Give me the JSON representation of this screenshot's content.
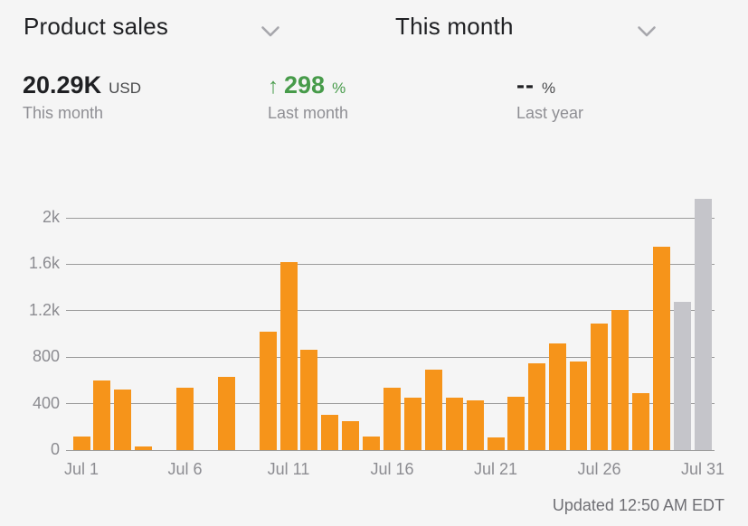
{
  "header": {
    "metric_selector": "Product sales",
    "period_selector": "This month"
  },
  "stats": [
    {
      "value": "20.29K",
      "unit": "USD",
      "caption": "This month"
    },
    {
      "arrow": "↑",
      "value": "298",
      "unit": "%",
      "caption": "Last month"
    },
    {
      "value": "--",
      "unit": "%",
      "caption": "Last year"
    }
  ],
  "colors": {
    "bar_orange": "#F6941A",
    "bar_incomplete_gray": "#C5C5CA",
    "positive_green": "#479B4A",
    "background": "#F5F5F5",
    "gridline": "#9C9C9C"
  },
  "chart_data": {
    "type": "bar",
    "title": "Product sales",
    "unit": "USD",
    "x": [
      "Jul 1",
      "Jul 2",
      "Jul 3",
      "Jul 4",
      "Jul 5",
      "Jul 6",
      "Jul 7",
      "Jul 8",
      "Jul 9",
      "Jul 10",
      "Jul 11",
      "Jul 12",
      "Jul 13",
      "Jul 14",
      "Jul 15",
      "Jul 16",
      "Jul 17",
      "Jul 18",
      "Jul 19",
      "Jul 20",
      "Jul 21",
      "Jul 22",
      "Jul 23",
      "Jul 24",
      "Jul 25",
      "Jul 26",
      "Jul 27",
      "Jul 28",
      "Jul 29",
      "Jul 30",
      "Jul 31"
    ],
    "values": [
      120,
      600,
      520,
      30,
      0,
      540,
      0,
      630,
      0,
      1020,
      1620,
      860,
      300,
      250,
      120,
      540,
      450,
      690,
      450,
      430,
      110,
      460,
      750,
      920,
      760,
      1090,
      1210,
      490,
      1750,
      1280,
      2160
    ],
    "bar_color": "#F6941A",
    "incomplete_bar_color": "#C5C5CA",
    "incomplete_from": "Jul 30",
    "yticks": [
      0,
      400,
      800,
      1200,
      1600,
      2000
    ],
    "ytick_labels": [
      "0",
      "400",
      "800",
      "1.2k",
      "1.6k",
      "2k"
    ],
    "xtick_labels": [
      "Jul 1",
      "Jul 6",
      "Jul 11",
      "Jul 16",
      "Jul 21",
      "Jul 26",
      "Jul 31"
    ],
    "ylim": [
      0,
      2200
    ],
    "grid": "horizontal",
    "legend": "none",
    "xlabel": "",
    "ylabel": ""
  },
  "footer": {
    "updated_text": "Updated 12:50 AM EDT"
  }
}
